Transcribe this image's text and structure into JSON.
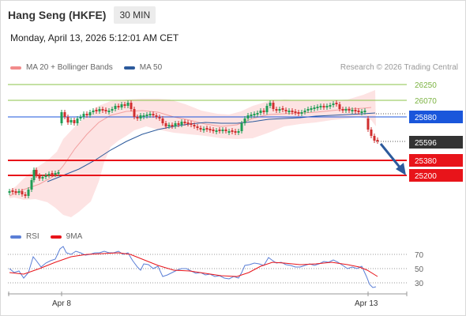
{
  "header": {
    "title": "Hang Seng (HKFE)",
    "interval": "30 MIN"
  },
  "datetime": "Monday, April 13, 2026 5:12:01 AM CET",
  "legend": {
    "bollinger": {
      "label": "MA 20 + Bollinger Bands",
      "color": "#f28b8b"
    },
    "ma50": {
      "label": "MA 50",
      "color": "#2c5a9c"
    }
  },
  "research": "Research © 2026 Trading Central",
  "levels": {
    "r2": {
      "value": "26250",
      "color": "#8bc34a"
    },
    "r1": {
      "value": "26070",
      "color": "#8bc34a"
    },
    "pivot": {
      "value": "25880",
      "color": "#1a56db"
    },
    "last": {
      "value": "25596",
      "color": "#333333"
    },
    "s1": {
      "value": "25380",
      "color": "#e8141a"
    },
    "s2": {
      "value": "25200",
      "color": "#e8141a"
    }
  },
  "rsi_legend": {
    "rsi": {
      "label": "RSI",
      "color": "#5b7fd6"
    },
    "ma9": {
      "label": "9MA",
      "color": "#e8141a"
    }
  },
  "rsi_axis": [
    "70",
    "50",
    "30"
  ],
  "x_axis": [
    "Apr 8",
    "Apr 13"
  ],
  "chart_data": {
    "type": "candlestick",
    "price_axis_labels": [
      26250,
      26070,
      25880,
      25596,
      25380,
      25200
    ],
    "last_price": 25596,
    "pivot": 25880,
    "resistances": [
      26070,
      26250
    ],
    "supports": [
      25380,
      25200
    ],
    "forecast": "down toward 25380 / 25200",
    "x_labels": [
      "Apr 8",
      "Apr 13"
    ],
    "rsi_levels": [
      70,
      50,
      30
    ]
  }
}
